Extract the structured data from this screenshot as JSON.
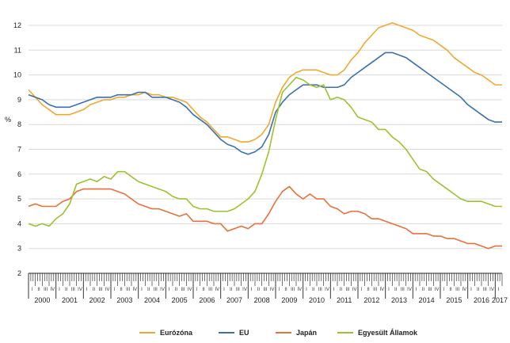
{
  "chart_data": {
    "type": "line",
    "ylabel": "%",
    "ylim": [
      2,
      12
    ],
    "yticks": [
      "2",
      "3",
      "4",
      "5",
      "6",
      "7",
      "8",
      "9",
      "10",
      "11",
      "12"
    ],
    "grid": "horizontal",
    "legend_position": "bottom",
    "quarter_labels": [
      "I",
      "II",
      "III",
      "IV"
    ],
    "years": [
      "2000",
      "2001",
      "2002",
      "2003",
      "2004",
      "2005",
      "2006",
      "2007",
      "2008",
      "2009",
      "2010",
      "2011",
      "2012",
      "2013",
      "2014",
      "2015",
      "2016",
      "2017"
    ],
    "x_start": 2000.0,
    "x_end": 2017.25,
    "series": [
      {
        "name": "Eurózóna",
        "color": "#F0A830",
        "points": [
          [
            2000.0,
            9.4
          ],
          [
            2000.25,
            9.1
          ],
          [
            2000.5,
            8.8
          ],
          [
            2000.75,
            8.6
          ],
          [
            2001.0,
            8.4
          ],
          [
            2001.25,
            8.4
          ],
          [
            2001.5,
            8.4
          ],
          [
            2001.75,
            8.5
          ],
          [
            2002.0,
            8.6
          ],
          [
            2002.25,
            8.8
          ],
          [
            2002.5,
            8.9
          ],
          [
            2002.75,
            9.0
          ],
          [
            2003.0,
            9.0
          ],
          [
            2003.25,
            9.1
          ],
          [
            2003.5,
            9.1
          ],
          [
            2003.75,
            9.2
          ],
          [
            2004.0,
            9.2
          ],
          [
            2004.25,
            9.3
          ],
          [
            2004.5,
            9.2
          ],
          [
            2004.75,
            9.2
          ],
          [
            2005.0,
            9.1
          ],
          [
            2005.25,
            9.1
          ],
          [
            2005.5,
            9.0
          ],
          [
            2005.75,
            8.9
          ],
          [
            2006.0,
            8.6
          ],
          [
            2006.25,
            8.3
          ],
          [
            2006.5,
            8.1
          ],
          [
            2006.75,
            7.8
          ],
          [
            2007.0,
            7.5
          ],
          [
            2007.25,
            7.5
          ],
          [
            2007.5,
            7.4
          ],
          [
            2007.75,
            7.3
          ],
          [
            2008.0,
            7.3
          ],
          [
            2008.25,
            7.4
          ],
          [
            2008.5,
            7.6
          ],
          [
            2008.75,
            8.0
          ],
          [
            2009.0,
            8.9
          ],
          [
            2009.25,
            9.5
          ],
          [
            2009.5,
            9.9
          ],
          [
            2009.75,
            10.1
          ],
          [
            2010.0,
            10.2
          ],
          [
            2010.25,
            10.2
          ],
          [
            2010.5,
            10.2
          ],
          [
            2010.75,
            10.1
          ],
          [
            2011.0,
            10.0
          ],
          [
            2011.25,
            10.0
          ],
          [
            2011.5,
            10.2
          ],
          [
            2011.75,
            10.6
          ],
          [
            2012.0,
            10.9
          ],
          [
            2012.25,
            11.3
          ],
          [
            2012.5,
            11.6
          ],
          [
            2012.75,
            11.9
          ],
          [
            2013.0,
            12.0
          ],
          [
            2013.25,
            12.1
          ],
          [
            2013.5,
            12.0
          ],
          [
            2013.75,
            11.9
          ],
          [
            2014.0,
            11.8
          ],
          [
            2014.25,
            11.6
          ],
          [
            2014.5,
            11.5
          ],
          [
            2014.75,
            11.4
          ],
          [
            2015.0,
            11.2
          ],
          [
            2015.25,
            11.0
          ],
          [
            2015.5,
            10.7
          ],
          [
            2015.75,
            10.5
          ],
          [
            2016.0,
            10.3
          ],
          [
            2016.25,
            10.1
          ],
          [
            2016.5,
            10.0
          ],
          [
            2016.75,
            9.8
          ],
          [
            2017.0,
            9.6
          ],
          [
            2017.25,
            9.6
          ]
        ]
      },
      {
        "name": "EU",
        "color": "#3A6FB0",
        "points": [
          [
            2000.0,
            9.2
          ],
          [
            2000.25,
            9.1
          ],
          [
            2000.5,
            9.0
          ],
          [
            2000.75,
            8.8
          ],
          [
            2001.0,
            8.7
          ],
          [
            2001.25,
            8.7
          ],
          [
            2001.5,
            8.7
          ],
          [
            2001.75,
            8.8
          ],
          [
            2002.0,
            8.9
          ],
          [
            2002.25,
            9.0
          ],
          [
            2002.5,
            9.1
          ],
          [
            2002.75,
            9.1
          ],
          [
            2003.0,
            9.1
          ],
          [
            2003.25,
            9.2
          ],
          [
            2003.5,
            9.2
          ],
          [
            2003.75,
            9.2
          ],
          [
            2004.0,
            9.3
          ],
          [
            2004.25,
            9.3
          ],
          [
            2004.5,
            9.1
          ],
          [
            2004.75,
            9.1
          ],
          [
            2005.0,
            9.1
          ],
          [
            2005.25,
            9.0
          ],
          [
            2005.5,
            8.9
          ],
          [
            2005.75,
            8.7
          ],
          [
            2006.0,
            8.4
          ],
          [
            2006.25,
            8.2
          ],
          [
            2006.5,
            8.0
          ],
          [
            2006.75,
            7.7
          ],
          [
            2007.0,
            7.4
          ],
          [
            2007.25,
            7.2
          ],
          [
            2007.5,
            7.1
          ],
          [
            2007.75,
            6.9
          ],
          [
            2008.0,
            6.8
          ],
          [
            2008.25,
            6.9
          ],
          [
            2008.5,
            7.1
          ],
          [
            2008.75,
            7.6
          ],
          [
            2009.0,
            8.5
          ],
          [
            2009.25,
            8.9
          ],
          [
            2009.5,
            9.2
          ],
          [
            2009.75,
            9.4
          ],
          [
            2010.0,
            9.6
          ],
          [
            2010.25,
            9.6
          ],
          [
            2010.5,
            9.6
          ],
          [
            2010.75,
            9.5
          ],
          [
            2011.0,
            9.5
          ],
          [
            2011.25,
            9.5
          ],
          [
            2011.5,
            9.6
          ],
          [
            2011.75,
            9.9
          ],
          [
            2012.0,
            10.1
          ],
          [
            2012.25,
            10.3
          ],
          [
            2012.5,
            10.5
          ],
          [
            2012.75,
            10.7
          ],
          [
            2013.0,
            10.9
          ],
          [
            2013.25,
            10.9
          ],
          [
            2013.5,
            10.8
          ],
          [
            2013.75,
            10.7
          ],
          [
            2014.0,
            10.5
          ],
          [
            2014.25,
            10.3
          ],
          [
            2014.5,
            10.1
          ],
          [
            2014.75,
            9.9
          ],
          [
            2015.0,
            9.7
          ],
          [
            2015.25,
            9.5
          ],
          [
            2015.5,
            9.3
          ],
          [
            2015.75,
            9.1
          ],
          [
            2016.0,
            8.8
          ],
          [
            2016.25,
            8.6
          ],
          [
            2016.5,
            8.4
          ],
          [
            2016.75,
            8.2
          ],
          [
            2017.0,
            8.1
          ],
          [
            2017.25,
            8.1
          ]
        ]
      },
      {
        "name": "Japán",
        "color": "#E8703A",
        "points": [
          [
            2000.0,
            4.7
          ],
          [
            2000.25,
            4.8
          ],
          [
            2000.5,
            4.7
          ],
          [
            2000.75,
            4.7
          ],
          [
            2001.0,
            4.7
          ],
          [
            2001.25,
            4.9
          ],
          [
            2001.5,
            5.0
          ],
          [
            2001.75,
            5.3
          ],
          [
            2002.0,
            5.4
          ],
          [
            2002.25,
            5.4
          ],
          [
            2002.5,
            5.4
          ],
          [
            2002.75,
            5.4
          ],
          [
            2003.0,
            5.4
          ],
          [
            2003.25,
            5.3
          ],
          [
            2003.5,
            5.2
          ],
          [
            2003.75,
            5.0
          ],
          [
            2004.0,
            4.8
          ],
          [
            2004.25,
            4.7
          ],
          [
            2004.5,
            4.6
          ],
          [
            2004.75,
            4.6
          ],
          [
            2005.0,
            4.5
          ],
          [
            2005.25,
            4.4
          ],
          [
            2005.5,
            4.3
          ],
          [
            2005.75,
            4.4
          ],
          [
            2006.0,
            4.1
          ],
          [
            2006.25,
            4.1
          ],
          [
            2006.5,
            4.1
          ],
          [
            2006.75,
            4.0
          ],
          [
            2007.0,
            4.0
          ],
          [
            2007.25,
            3.7
          ],
          [
            2007.5,
            3.8
          ],
          [
            2007.75,
            3.9
          ],
          [
            2008.0,
            3.8
          ],
          [
            2008.25,
            4.0
          ],
          [
            2008.5,
            4.0
          ],
          [
            2008.75,
            4.4
          ],
          [
            2009.0,
            4.9
          ],
          [
            2009.25,
            5.3
          ],
          [
            2009.5,
            5.5
          ],
          [
            2009.75,
            5.2
          ],
          [
            2010.0,
            5.0
          ],
          [
            2010.25,
            5.2
          ],
          [
            2010.5,
            5.0
          ],
          [
            2010.75,
            5.0
          ],
          [
            2011.0,
            4.7
          ],
          [
            2011.25,
            4.6
          ],
          [
            2011.5,
            4.4
          ],
          [
            2011.75,
            4.5
          ],
          [
            2012.0,
            4.5
          ],
          [
            2012.25,
            4.4
          ],
          [
            2012.5,
            4.2
          ],
          [
            2012.75,
            4.2
          ],
          [
            2013.0,
            4.1
          ],
          [
            2013.25,
            4.0
          ],
          [
            2013.5,
            3.9
          ],
          [
            2013.75,
            3.8
          ],
          [
            2014.0,
            3.6
          ],
          [
            2014.25,
            3.6
          ],
          [
            2014.5,
            3.6
          ],
          [
            2014.75,
            3.5
          ],
          [
            2015.0,
            3.5
          ],
          [
            2015.25,
            3.4
          ],
          [
            2015.5,
            3.4
          ],
          [
            2015.75,
            3.3
          ],
          [
            2016.0,
            3.2
          ],
          [
            2016.25,
            3.2
          ],
          [
            2016.5,
            3.1
          ],
          [
            2016.75,
            3.0
          ],
          [
            2017.0,
            3.1
          ],
          [
            2017.25,
            3.1
          ]
        ]
      },
      {
        "name": "Egyesült Államok",
        "color": "#9BC230",
        "points": [
          [
            2000.0,
            4.0
          ],
          [
            2000.25,
            3.9
          ],
          [
            2000.5,
            4.0
          ],
          [
            2000.75,
            3.9
          ],
          [
            2001.0,
            4.2
          ],
          [
            2001.25,
            4.4
          ],
          [
            2001.5,
            4.8
          ],
          [
            2001.75,
            5.6
          ],
          [
            2002.0,
            5.7
          ],
          [
            2002.25,
            5.8
          ],
          [
            2002.5,
            5.7
          ],
          [
            2002.75,
            5.9
          ],
          [
            2003.0,
            5.8
          ],
          [
            2003.25,
            6.1
          ],
          [
            2003.5,
            6.1
          ],
          [
            2003.75,
            5.9
          ],
          [
            2004.0,
            5.7
          ],
          [
            2004.25,
            5.6
          ],
          [
            2004.5,
            5.5
          ],
          [
            2004.75,
            5.4
          ],
          [
            2005.0,
            5.3
          ],
          [
            2005.25,
            5.1
          ],
          [
            2005.5,
            5.0
          ],
          [
            2005.75,
            5.0
          ],
          [
            2006.0,
            4.7
          ],
          [
            2006.25,
            4.6
          ],
          [
            2006.5,
            4.6
          ],
          [
            2006.75,
            4.5
          ],
          [
            2007.0,
            4.5
          ],
          [
            2007.25,
            4.5
          ],
          [
            2007.5,
            4.6
          ],
          [
            2007.75,
            4.8
          ],
          [
            2008.0,
            5.0
          ],
          [
            2008.25,
            5.3
          ],
          [
            2008.5,
            6.0
          ],
          [
            2008.75,
            6.9
          ],
          [
            2009.0,
            8.2
          ],
          [
            2009.25,
            9.3
          ],
          [
            2009.5,
            9.6
          ],
          [
            2009.75,
            9.9
          ],
          [
            2010.0,
            9.8
          ],
          [
            2010.25,
            9.6
          ],
          [
            2010.5,
            9.5
          ],
          [
            2010.75,
            9.6
          ],
          [
            2011.0,
            9.0
          ],
          [
            2011.25,
            9.1
          ],
          [
            2011.5,
            9.0
          ],
          [
            2011.75,
            8.7
          ],
          [
            2012.0,
            8.3
          ],
          [
            2012.25,
            8.2
          ],
          [
            2012.5,
            8.1
          ],
          [
            2012.75,
            7.8
          ],
          [
            2013.0,
            7.8
          ],
          [
            2013.25,
            7.5
          ],
          [
            2013.5,
            7.3
          ],
          [
            2013.75,
            7.0
          ],
          [
            2014.0,
            6.6
          ],
          [
            2014.25,
            6.2
          ],
          [
            2014.5,
            6.1
          ],
          [
            2014.75,
            5.8
          ],
          [
            2015.0,
            5.6
          ],
          [
            2015.25,
            5.4
          ],
          [
            2015.5,
            5.2
          ],
          [
            2015.75,
            5.0
          ],
          [
            2016.0,
            4.9
          ],
          [
            2016.25,
            4.9
          ],
          [
            2016.5,
            4.9
          ],
          [
            2016.75,
            4.8
          ],
          [
            2017.0,
            4.7
          ],
          [
            2017.25,
            4.7
          ]
        ]
      }
    ]
  }
}
